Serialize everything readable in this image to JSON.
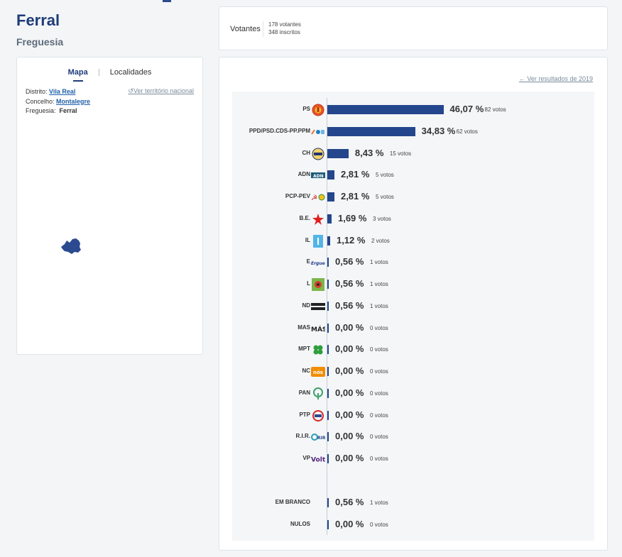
{
  "header": {
    "title": "Ferral",
    "subtitle": "Freguesia"
  },
  "tabs": {
    "map": "Mapa",
    "localities": "Localidades"
  },
  "location": {
    "district_label": "Distrito:",
    "district": "Vila Real",
    "county_label": "Concelho:",
    "county": "Montalegre",
    "parish_label": "Freguesia:",
    "parish": "Ferral",
    "national_link": "Ver território nacional"
  },
  "votes": {
    "label": "Votantes",
    "voters": "178 votantes",
    "registered": "348 inscritos"
  },
  "results": {
    "prev_link": "Ver resultados de 2019"
  },
  "colors": {
    "bar": "#24468c",
    "title": "#1f3c78",
    "link": "#1f5fa8"
  },
  "chart_data": {
    "type": "bar",
    "orientation": "horizontal",
    "parties": [
      {
        "name": "PS",
        "pct": 46.07,
        "pct_label": "46,07 %",
        "votes_label": "82 votos",
        "logo": "ps-fist-rose-icon"
      },
      {
        "name": "PPD/PSD.CDS-PP.PPM",
        "pct": 34.83,
        "pct_label": "34,83 %",
        "votes_label": "62 votos",
        "logo": "psd-cds-ppm-icon"
      },
      {
        "name": "CH",
        "pct": 8.43,
        "pct_label": "8,43 %",
        "votes_label": "15 votos",
        "logo": "chega-icon"
      },
      {
        "name": "ADN",
        "pct": 2.81,
        "pct_label": "2,81 %",
        "votes_label": "5 votos",
        "logo": "adn-icon"
      },
      {
        "name": "PCP-PEV",
        "pct": 2.81,
        "pct_label": "2,81 %",
        "votes_label": "5 votos",
        "logo": "pcp-pev-icon"
      },
      {
        "name": "B.E.",
        "pct": 1.69,
        "pct_label": "1,69 %",
        "votes_label": "3 votos",
        "logo": "be-star-icon"
      },
      {
        "name": "IL",
        "pct": 1.12,
        "pct_label": "1,12 %",
        "votes_label": "2 votos",
        "logo": "il-icon"
      },
      {
        "name": "E",
        "pct": 0.56,
        "pct_label": "0,56 %",
        "votes_label": "1 votos",
        "logo": "ergue-te-icon"
      },
      {
        "name": "L",
        "pct": 0.56,
        "pct_label": "0,56 %",
        "votes_label": "1 votos",
        "logo": "livre-flower-icon"
      },
      {
        "name": "ND",
        "pct": 0.56,
        "pct_label": "0,56 %",
        "votes_label": "1 votos",
        "logo": "nova-direita-icon"
      },
      {
        "name": "MAS",
        "pct": 0.0,
        "pct_label": "0,00 %",
        "votes_label": "0 votos",
        "logo": "mas-icon"
      },
      {
        "name": "MPT",
        "pct": 0.0,
        "pct_label": "0,00 %",
        "votes_label": "0 votos",
        "logo": "mpt-clover-icon"
      },
      {
        "name": "NC",
        "pct": 0.0,
        "pct_label": "0,00 %",
        "votes_label": "0 votos",
        "logo": "nos-cidadaos-icon"
      },
      {
        "name": "PAN",
        "pct": 0.0,
        "pct_label": "0,00 %",
        "votes_label": "0 votos",
        "logo": "pan-tree-icon"
      },
      {
        "name": "PTP",
        "pct": 0.0,
        "pct_label": "0,00 %",
        "votes_label": "0 votos",
        "logo": "ptp-icon"
      },
      {
        "name": "R.I.R.",
        "pct": 0.0,
        "pct_label": "0,00 %",
        "votes_label": "0 votos",
        "logo": "rir-icon"
      },
      {
        "name": "VP",
        "pct": 0.0,
        "pct_label": "0,00 %",
        "votes_label": "0 votos",
        "logo": "volt-icon"
      }
    ],
    "other": [
      {
        "name": "EM BRANCO",
        "pct": 0.56,
        "pct_label": "0,56 %",
        "votes_label": "1 votos"
      },
      {
        "name": "NULOS",
        "pct": 0.0,
        "pct_label": "0,00 %",
        "votes_label": "0 votos"
      }
    ]
  }
}
